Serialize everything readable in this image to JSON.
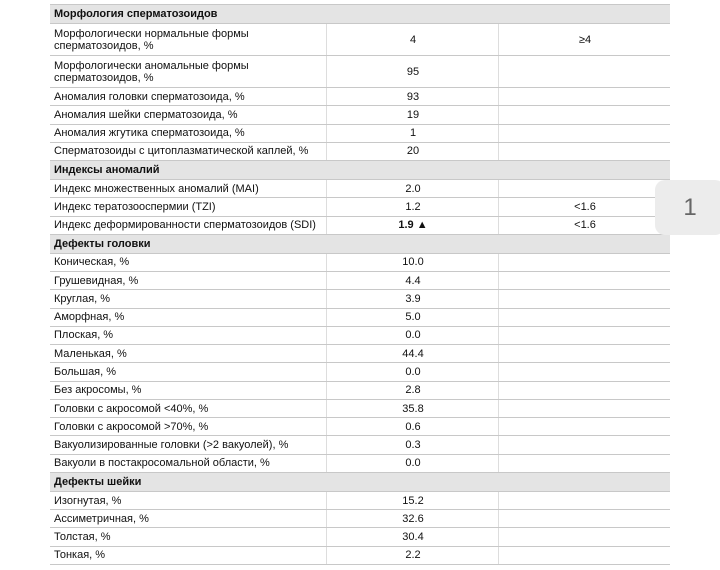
{
  "sections": [
    {
      "title": "Морфология сперматозоидов",
      "rows": [
        {
          "label": [
            "Морфологически нормальные формы",
            "сперматозоидов, %"
          ],
          "value": "4",
          "ref": "≥4"
        },
        {
          "label": [
            "Морфологически аномальные формы",
            "сперматозоидов, %"
          ],
          "value": "95"
        },
        {
          "label": [
            "Аномалия головки сперматозоида, %"
          ],
          "value": "93"
        },
        {
          "label": [
            "Аномалия шейки сперматозоида, %"
          ],
          "value": "19"
        },
        {
          "label": [
            "Аномалия жгутика сперматозоида, %"
          ],
          "value": "1"
        },
        {
          "label": [
            "Сперматозоиды с цитоплазматической каплей, %"
          ],
          "value": "20"
        }
      ]
    },
    {
      "title": "Индексы аномалий",
      "rows": [
        {
          "label": [
            "Индекс множественных аномалий (MAI)"
          ],
          "value": "2.0"
        },
        {
          "label": [
            "Индекс тератозооспермии (TZI)"
          ],
          "value": "1.2",
          "ref": "<1.6"
        },
        {
          "label": [
            "Индекс деформированности сперматозоидов (SDI)"
          ],
          "value": "1.9 ▲",
          "bold": true,
          "ref": "<1.6"
        }
      ]
    },
    {
      "title": "Дефекты головки",
      "rows": [
        {
          "label": [
            "Коническая, %"
          ],
          "value": "10.0"
        },
        {
          "label": [
            "Грушевидная, %"
          ],
          "value": "4.4"
        },
        {
          "label": [
            "Круглая, %"
          ],
          "value": "3.9"
        },
        {
          "label": [
            "Аморфная, %"
          ],
          "value": "5.0"
        },
        {
          "label": [
            "Плоская, %"
          ],
          "value": "0.0"
        },
        {
          "label": [
            "Маленькая, %"
          ],
          "value": "44.4"
        },
        {
          "label": [
            "Большая, %"
          ],
          "value": "0.0"
        },
        {
          "label": [
            "Без акросомы, %"
          ],
          "value": "2.8"
        },
        {
          "label": [
            "Головки с акросомой <40%, %"
          ],
          "value": "35.8"
        },
        {
          "label": [
            "Головки с акросомой >70%, %"
          ],
          "value": "0.6"
        },
        {
          "label": [
            "Вакуолизированные головки (>2 вакуолей), %"
          ],
          "value": "0.3"
        },
        {
          "label": [
            "Вакуоли в постакросомальной области, %"
          ],
          "value": "0.0"
        }
      ]
    },
    {
      "title": "Дефекты шейки",
      "rows": [
        {
          "label": [
            "Изогнутая, %"
          ],
          "value": "15.2"
        },
        {
          "label": [
            "Ассиметричная, %"
          ],
          "value": "32.6"
        },
        {
          "label": [
            "Толстая, %"
          ],
          "value": "30.4"
        },
        {
          "label": [
            "Тонкая, %"
          ],
          "value": "2.2"
        }
      ]
    }
  ],
  "page_number": "1"
}
